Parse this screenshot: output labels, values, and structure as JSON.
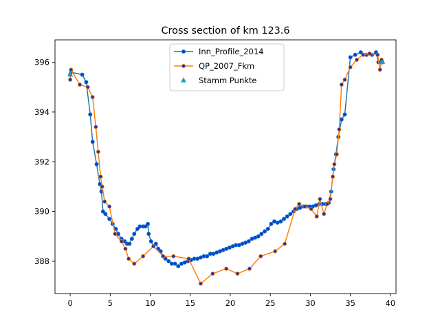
{
  "chart_data": {
    "type": "line",
    "title": "Cross section of km 123.6",
    "xlabel": "",
    "ylabel": "",
    "xlim": [
      -1.9,
      40.7
    ],
    "ylim": [
      386.7,
      396.9
    ],
    "xticks": [
      0,
      5,
      10,
      15,
      20,
      25,
      30,
      35,
      40
    ],
    "yticks": [
      388,
      390,
      392,
      394,
      396
    ],
    "legend_position": "top-center",
    "grid": false,
    "series": [
      {
        "name": "Inn_Profile_2014",
        "color": "#1f77b4",
        "marker_face": "#0044dd",
        "x": [
          0.0,
          0.1,
          1.5,
          2.0,
          2.5,
          2.8,
          3.3,
          3.7,
          3.9,
          4.1,
          4.4,
          4.9,
          5.3,
          5.7,
          6.0,
          6.4,
          6.8,
          7.1,
          7.4,
          7.7,
          8.0,
          8.4,
          8.7,
          9.1,
          9.4,
          9.7,
          9.8,
          10.1,
          10.4,
          10.7,
          11.0,
          11.3,
          11.6,
          11.9,
          12.3,
          12.7,
          13.1,
          13.5,
          13.9,
          14.3,
          14.7,
          15.1,
          15.5,
          15.9,
          16.3,
          16.7,
          17.1,
          17.5,
          17.9,
          18.3,
          18.7,
          19.1,
          19.5,
          19.9,
          20.3,
          20.7,
          21.1,
          21.5,
          21.9,
          22.3,
          22.7,
          23.1,
          23.5,
          23.9,
          24.3,
          24.7,
          25.1,
          25.5,
          25.9,
          26.3,
          26.7,
          27.1,
          27.5,
          27.9,
          28.3,
          28.7,
          29.1,
          29.5,
          29.9,
          30.3,
          30.7,
          31.1,
          31.5,
          31.9,
          32.3,
          32.6,
          32.9,
          33.2,
          33.5,
          33.9,
          34.3,
          35.0,
          35.6,
          36.3,
          37.0,
          37.7,
          38.2,
          38.5,
          38.8,
          39.0
        ],
        "y": [
          395.5,
          395.6,
          395.5,
          395.2,
          393.9,
          392.8,
          391.9,
          391.1,
          390.8,
          390.0,
          389.9,
          389.7,
          389.5,
          389.3,
          389.1,
          388.9,
          388.8,
          388.7,
          388.7,
          388.9,
          389.1,
          389.3,
          389.4,
          389.4,
          389.4,
          389.5,
          389.1,
          388.8,
          388.6,
          388.7,
          388.5,
          388.4,
          388.2,
          388.1,
          388.0,
          387.9,
          387.9,
          387.8,
          387.9,
          387.95,
          388.0,
          388.05,
          388.1,
          388.1,
          388.15,
          388.2,
          388.2,
          388.3,
          388.3,
          388.35,
          388.4,
          388.45,
          388.5,
          388.55,
          388.6,
          388.65,
          388.65,
          388.7,
          388.75,
          388.8,
          388.9,
          388.95,
          389.0,
          389.1,
          389.2,
          389.3,
          389.5,
          389.6,
          389.55,
          389.6,
          389.7,
          389.8,
          389.9,
          390.0,
          390.1,
          390.15,
          390.2,
          390.2,
          390.2,
          390.2,
          390.25,
          390.3,
          390.3,
          390.3,
          390.35,
          390.8,
          391.7,
          392.3,
          393.0,
          393.7,
          393.9,
          396.2,
          396.3,
          396.4,
          396.3,
          396.3,
          396.4,
          396.0,
          396.0,
          396.0
        ]
      },
      {
        "name": "QP_2007_Fkm",
        "color": "#ff7f0e",
        "marker_face": "#2233aa",
        "x": [
          0.0,
          0.1,
          1.2,
          2.2,
          2.8,
          3.2,
          3.5,
          3.8,
          4.0,
          4.3,
          4.9,
          5.6,
          6.4,
          6.9,
          7.3,
          8.0,
          9.1,
          10.4,
          11.6,
          12.9,
          14.8,
          16.3,
          17.8,
          19.5,
          20.9,
          22.4,
          23.8,
          25.6,
          26.8,
          28.1,
          28.6,
          29.3,
          30.1,
          30.8,
          31.2,
          31.7,
          32.1,
          32.5,
          32.8,
          33.0,
          33.3,
          33.6,
          33.9,
          34.3,
          35.0,
          35.8,
          36.6,
          37.4,
          38.4,
          38.7,
          38.9
        ],
        "y": [
          395.3,
          395.7,
          395.1,
          395.0,
          394.6,
          393.4,
          392.4,
          391.4,
          391.0,
          390.4,
          390.2,
          389.1,
          388.8,
          388.5,
          388.1,
          387.9,
          388.2,
          388.6,
          388.2,
          388.2,
          388.1,
          387.1,
          387.5,
          387.7,
          387.5,
          387.7,
          388.2,
          388.4,
          388.7,
          390.1,
          390.3,
          390.2,
          390.1,
          389.8,
          390.5,
          389.9,
          390.3,
          390.5,
          391.4,
          391.9,
          392.3,
          393.3,
          395.1,
          395.3,
          395.8,
          396.1,
          396.3,
          396.35,
          396.3,
          395.7,
          396.1
        ]
      },
      {
        "name": "Stamm Punkte",
        "type": "scatter",
        "marker": "triangle",
        "color": "#17a0b8",
        "x": [
          0.0,
          39.0
        ],
        "y": [
          395.5,
          396.0
        ]
      }
    ]
  }
}
